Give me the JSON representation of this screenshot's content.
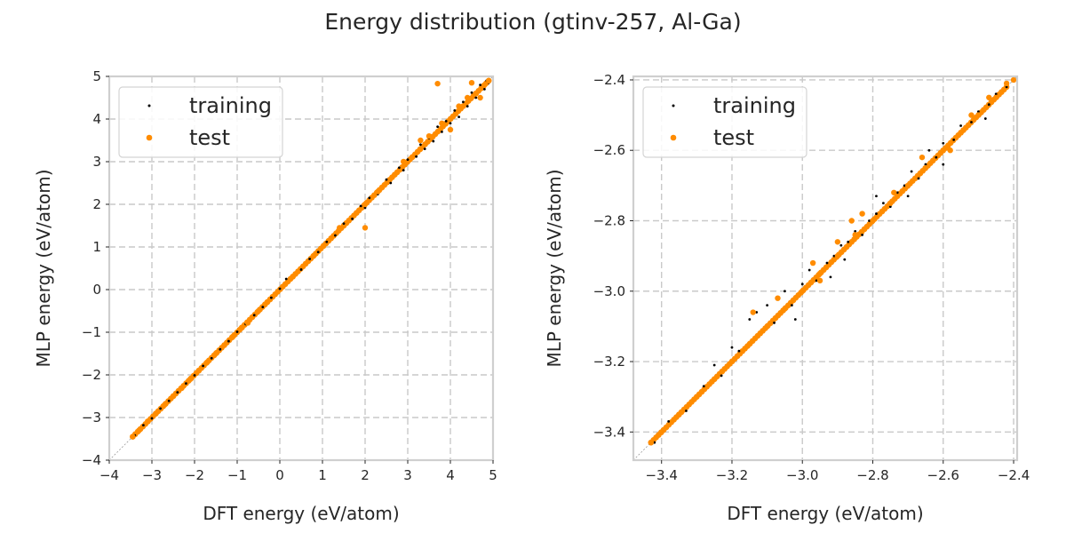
{
  "figure": {
    "title": "Energy distribution (gtinv-257, Al-Ga)"
  },
  "chart_data": [
    {
      "type": "scatter",
      "title": "",
      "xlabel": "DFT energy (eV/atom)",
      "ylabel": "MLP energy (eV/atom)",
      "xlim": [
        -4,
        5
      ],
      "ylim": [
        -4,
        5
      ],
      "xticks": [
        -4,
        -3,
        -2,
        -1,
        0,
        1,
        2,
        3,
        4,
        5
      ],
      "yticks": [
        -4,
        -3,
        -2,
        -1,
        0,
        1,
        2,
        3,
        4,
        5
      ],
      "xtick_labels": [
        "−4",
        "−3",
        "−2",
        "−1",
        "0",
        "1",
        "2",
        "3",
        "4",
        "5"
      ],
      "ytick_labels": [
        "−4",
        "−3",
        "−2",
        "−1",
        "0",
        "1",
        "2",
        "3",
        "4",
        "5"
      ],
      "grid": true,
      "legend_position": "upper-left",
      "diagonal_reference": true,
      "series": [
        {
          "name": "training",
          "color": "#000000",
          "marker": "small-dot",
          "points": [
            [
              -3.4,
              -3.42
            ],
            [
              -3.2,
              -3.18
            ],
            [
              -3.0,
              -3.02
            ],
            [
              -2.8,
              -2.79
            ],
            [
              -2.6,
              -2.61
            ],
            [
              -2.4,
              -2.41
            ],
            [
              -2.2,
              -2.2
            ],
            [
              -2.0,
              -2.01
            ],
            [
              -1.8,
              -1.79
            ],
            [
              -1.6,
              -1.61
            ],
            [
              -1.4,
              -1.4
            ],
            [
              -1.2,
              -1.21
            ],
            [
              -1.0,
              -0.99
            ],
            [
              -0.8,
              -0.81
            ],
            [
              -0.6,
              -0.6
            ],
            [
              -0.4,
              -0.41
            ],
            [
              -0.2,
              -0.19
            ],
            [
              0.0,
              0.02
            ],
            [
              0.15,
              0.25
            ],
            [
              0.3,
              0.28
            ],
            [
              0.5,
              0.47
            ],
            [
              0.7,
              0.72
            ],
            [
              0.9,
              0.88
            ],
            [
              1.1,
              1.12
            ],
            [
              1.3,
              1.27
            ],
            [
              1.5,
              1.55
            ],
            [
              1.7,
              1.66
            ],
            [
              1.9,
              1.96
            ],
            [
              2.0,
              1.92
            ],
            [
              2.1,
              2.15
            ],
            [
              2.3,
              2.24
            ],
            [
              2.5,
              2.58
            ],
            [
              2.6,
              2.5
            ],
            [
              2.8,
              2.86
            ],
            [
              2.9,
              2.8
            ],
            [
              3.0,
              3.05
            ],
            [
              3.2,
              3.12
            ],
            [
              3.3,
              3.4
            ],
            [
              3.4,
              3.3
            ],
            [
              3.5,
              3.55
            ],
            [
              3.6,
              3.48
            ],
            [
              3.7,
              3.82
            ],
            [
              3.8,
              3.7
            ],
            [
              3.9,
              3.95
            ],
            [
              4.0,
              3.9
            ],
            [
              4.1,
              4.2
            ],
            [
              4.2,
              4.05
            ],
            [
              4.3,
              4.4
            ],
            [
              4.4,
              4.3
            ],
            [
              4.5,
              4.62
            ],
            [
              4.6,
              4.5
            ],
            [
              4.7,
              4.8
            ],
            [
              4.8,
              4.7
            ],
            [
              4.85,
              4.9
            ],
            [
              4.9,
              4.85
            ]
          ]
        },
        {
          "name": "test",
          "color": "#ff8c00",
          "marker": "dot",
          "points": [
            [
              -3.45,
              -3.45
            ],
            [
              -3.3,
              -3.3
            ],
            [
              -3.1,
              -3.09
            ],
            [
              -2.9,
              -2.9
            ],
            [
              -2.7,
              -2.7
            ],
            [
              -2.5,
              -2.5
            ],
            [
              -2.3,
              -2.31
            ],
            [
              -2.1,
              -2.1
            ],
            [
              -1.9,
              -1.9
            ],
            [
              -1.7,
              -1.7
            ],
            [
              -1.5,
              -1.5
            ],
            [
              -1.3,
              -1.3
            ],
            [
              -1.1,
              -1.1
            ],
            [
              -0.9,
              -0.9
            ],
            [
              -0.75,
              -0.78
            ],
            [
              -0.5,
              -0.5
            ],
            [
              -0.3,
              -0.3
            ],
            [
              0.3,
              0.3
            ],
            [
              0.8,
              0.8
            ],
            [
              1.2,
              1.2
            ],
            [
              1.4,
              1.45
            ],
            [
              1.8,
              1.8
            ],
            [
              2.0,
              2.0
            ],
            [
              2.0,
              1.45
            ],
            [
              2.3,
              2.3
            ],
            [
              2.7,
              2.7
            ],
            [
              2.9,
              3.0
            ],
            [
              3.1,
              3.1
            ],
            [
              3.3,
              3.5
            ],
            [
              3.5,
              3.6
            ],
            [
              3.7,
              4.83
            ],
            [
              3.8,
              3.9
            ],
            [
              4.0,
              3.75
            ],
            [
              4.2,
              4.3
            ],
            [
              4.4,
              4.5
            ],
            [
              4.5,
              4.85
            ],
            [
              4.6,
              4.6
            ],
            [
              4.7,
              4.5
            ],
            [
              4.8,
              4.8
            ],
            [
              4.9,
              4.9
            ]
          ]
        }
      ]
    },
    {
      "type": "scatter",
      "title": "",
      "xlabel": "DFT energy (eV/atom)",
      "ylabel": "MLP energy (eV/atom)",
      "xlim": [
        -3.48,
        -2.39
      ],
      "ylim": [
        -3.48,
        -2.39
      ],
      "xticks": [
        -3.4,
        -3.2,
        -3.0,
        -2.8,
        -2.6,
        -2.4
      ],
      "yticks": [
        -3.4,
        -3.2,
        -3.0,
        -2.8,
        -2.6,
        -2.4
      ],
      "xtick_labels": [
        "−3.4",
        "−3.2",
        "−3.0",
        "−2.8",
        "−2.6",
        "−2.4"
      ],
      "ytick_labels": [
        "−3.4",
        "−3.2",
        "−3.0",
        "−2.8",
        "−2.6",
        "−2.4"
      ],
      "grid": true,
      "legend_position": "upper-left",
      "diagonal_reference": true,
      "series": [
        {
          "name": "training",
          "color": "#000000",
          "marker": "small-dot",
          "points": [
            [
              -3.42,
              -3.43
            ],
            [
              -3.38,
              -3.37
            ],
            [
              -3.33,
              -3.34
            ],
            [
              -3.28,
              -3.27
            ],
            [
              -3.23,
              -3.24
            ],
            [
              -3.18,
              -3.17
            ],
            [
              -3.15,
              -3.08
            ],
            [
              -3.13,
              -3.06
            ],
            [
              -3.1,
              -3.04
            ],
            [
              -3.08,
              -3.09
            ],
            [
              -3.05,
              -3.0
            ],
            [
              -3.03,
              -3.04
            ],
            [
              -3.0,
              -2.98
            ],
            [
              -2.98,
              -2.94
            ],
            [
              -2.96,
              -2.97
            ],
            [
              -2.93,
              -2.92
            ],
            [
              -2.91,
              -2.9
            ],
            [
              -2.89,
              -2.87
            ],
            [
              -2.87,
              -2.86
            ],
            [
              -2.85,
              -2.83
            ],
            [
              -2.83,
              -2.84
            ],
            [
              -2.81,
              -2.8
            ],
            [
              -2.79,
              -2.78
            ],
            [
              -2.77,
              -2.75
            ],
            [
              -2.75,
              -2.76
            ],
            [
              -2.73,
              -2.72
            ],
            [
              -2.71,
              -2.7
            ],
            [
              -2.69,
              -2.66
            ],
            [
              -2.67,
              -2.68
            ],
            [
              -2.65,
              -2.64
            ],
            [
              -2.62,
              -2.62
            ],
            [
              -2.6,
              -2.58
            ],
            [
              -2.57,
              -2.57
            ],
            [
              -2.55,
              -2.53
            ],
            [
              -2.52,
              -2.52
            ],
            [
              -2.5,
              -2.49
            ],
            [
              -2.47,
              -2.47
            ],
            [
              -2.45,
              -2.44
            ],
            [
              -2.42,
              -2.42
            ],
            [
              -2.4,
              -2.4
            ],
            [
              -3.25,
              -3.21
            ],
            [
              -3.2,
              -3.16
            ],
            [
              -3.02,
              -3.08
            ],
            [
              -2.92,
              -2.96
            ],
            [
              -2.88,
              -2.91
            ],
            [
              -2.79,
              -2.73
            ],
            [
              -2.7,
              -2.73
            ],
            [
              -2.64,
              -2.6
            ],
            [
              -2.6,
              -2.64
            ],
            [
              -2.48,
              -2.51
            ]
          ]
        },
        {
          "name": "test",
          "color": "#ff8c00",
          "marker": "dot",
          "points": [
            [
              -3.43,
              -3.43
            ],
            [
              -3.4,
              -3.4
            ],
            [
              -3.35,
              -3.35
            ],
            [
              -3.3,
              -3.3
            ],
            [
              -3.25,
              -3.25
            ],
            [
              -3.2,
              -3.2
            ],
            [
              -3.15,
              -3.15
            ],
            [
              -3.1,
              -3.1
            ],
            [
              -3.05,
              -3.05
            ],
            [
              -3.0,
              -3.0
            ],
            [
              -2.95,
              -2.95
            ],
            [
              -2.9,
              -2.9
            ],
            [
              -2.85,
              -2.84
            ],
            [
              -2.8,
              -2.8
            ],
            [
              -2.75,
              -2.75
            ],
            [
              -2.7,
              -2.7
            ],
            [
              -2.65,
              -2.65
            ],
            [
              -2.6,
              -2.6
            ],
            [
              -2.55,
              -2.55
            ],
            [
              -2.5,
              -2.5
            ],
            [
              -2.45,
              -2.45
            ],
            [
              -2.4,
              -2.4
            ],
            [
              -3.14,
              -3.06
            ],
            [
              -3.07,
              -3.02
            ],
            [
              -2.97,
              -2.92
            ],
            [
              -2.95,
              -2.97
            ],
            [
              -2.9,
              -2.86
            ],
            [
              -2.86,
              -2.8
            ],
            [
              -2.83,
              -2.78
            ],
            [
              -2.74,
              -2.72
            ],
            [
              -2.66,
              -2.62
            ],
            [
              -2.58,
              -2.6
            ],
            [
              -2.52,
              -2.5
            ],
            [
              -2.47,
              -2.45
            ],
            [
              -2.42,
              -2.41
            ]
          ]
        }
      ]
    }
  ]
}
